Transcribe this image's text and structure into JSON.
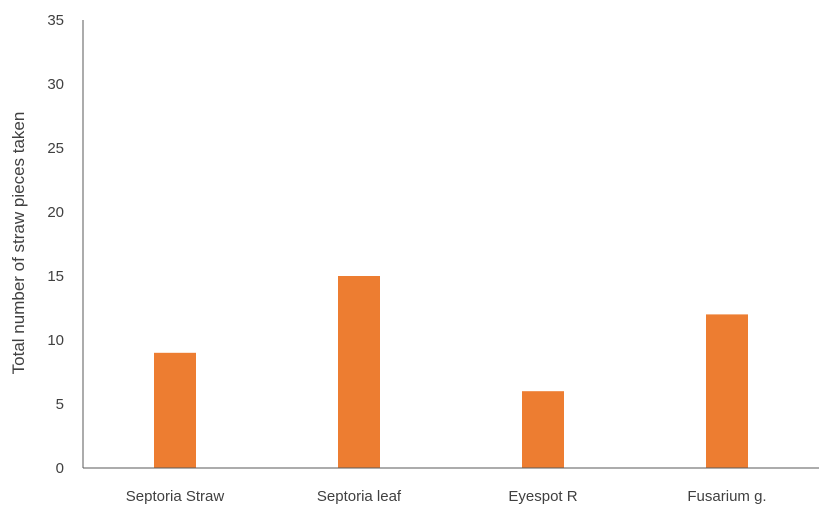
{
  "chart_data": {
    "type": "bar",
    "categories": [
      "Septoria Straw",
      "Septoria leaf",
      "Eyespot R",
      "Fusarium g."
    ],
    "values": [
      9,
      15,
      6,
      12
    ],
    "title": "",
    "xlabel": "",
    "ylabel": "Total number of straw pieces taken",
    "ylim": [
      0,
      35
    ],
    "yticks": [
      "0",
      "5",
      "10",
      "15",
      "20",
      "25",
      "30",
      "35"
    ],
    "grid": false,
    "legend": "none",
    "bar_color": "#ED7D31",
    "axis_color": "#595959"
  }
}
